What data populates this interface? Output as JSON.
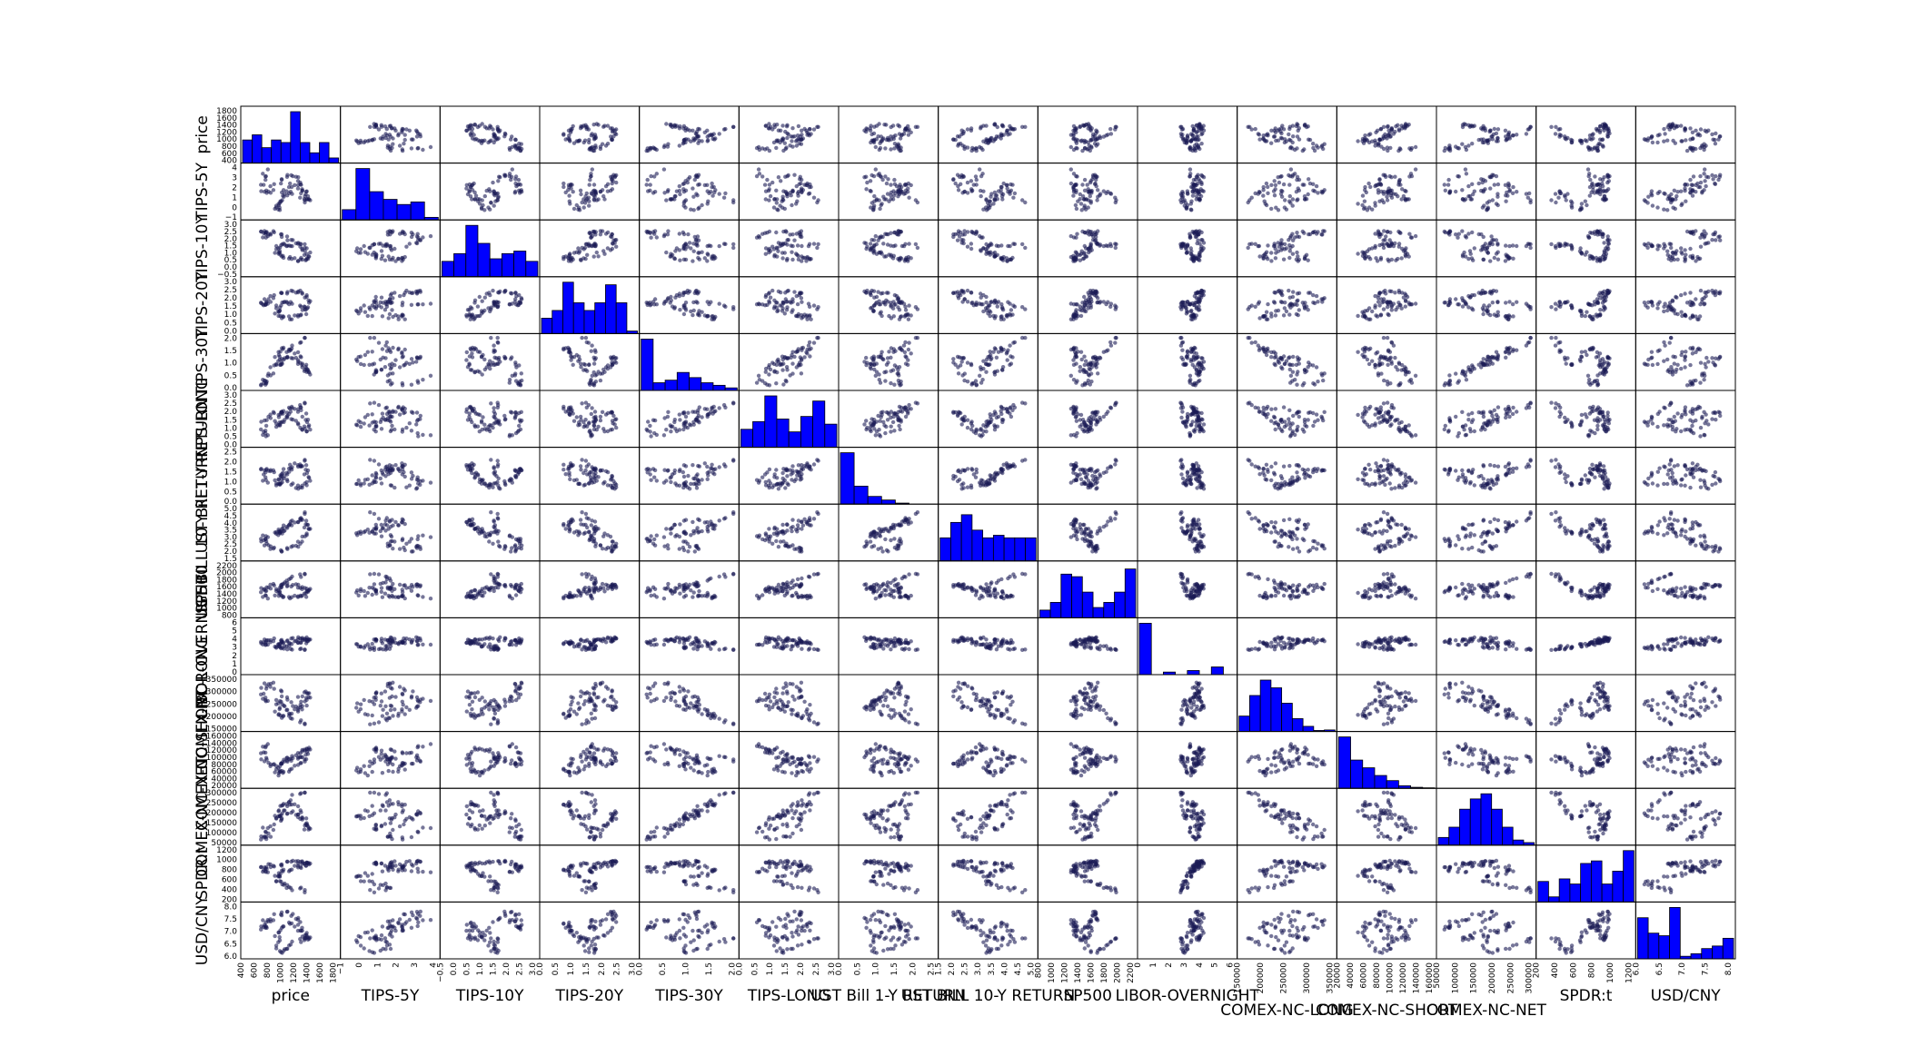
{
  "chart_data": {
    "type": "scatter_matrix",
    "variables": [
      "price",
      "TIPS-5Y",
      "TIPS-10Y",
      "TIPS-20Y",
      "TIPS-30Y",
      "TIPS-LONG",
      "UST Bill 1-Y RETURN",
      "UST BILL 10-Y RETURN",
      "SP500",
      "LIBOR-OVERNIGHT",
      "COMEX-NC-LONG",
      "COMEX-NC-SHORT",
      "COMEX-NC-NET",
      "SPDR:t",
      "USD/CNY"
    ],
    "diagonal": "histogram",
    "off_diagonal": "scatter",
    "ranges": {
      "price": [
        400,
        1900
      ],
      "TIPS-5Y": [
        -1.5,
        4.5
      ],
      "TIPS-10Y": [
        -0.8,
        3.0
      ],
      "TIPS-20Y": [
        -0.3,
        3.3
      ],
      "TIPS-30Y": [
        0.0,
        2.2
      ],
      "TIPS-LONG": [
        -0.2,
        3.0
      ],
      "UST Bill 1-Y RETURN": [
        0.0,
        2.6
      ],
      "UST BILL 10-Y RETURN": [
        1.4,
        5.3
      ],
      "SP500": [
        600,
        2250
      ],
      "LIBOR-OVERNIGHT": [
        0,
        6.5
      ],
      "COMEX-NC-LONG": [
        100000,
        360000
      ],
      "COMEX-NC-SHORT": [
        15000,
        160000
      ],
      "COMEX-NC-NET": [
        20000,
        310000
      ],
      "SPDR:t": [
        100,
        1350
      ],
      "USD/CNY": [
        6.0,
        8.3
      ]
    },
    "row_ticks": [
      [
        "400",
        "600",
        "800",
        "1000",
        "1200",
        "1400",
        "1600",
        "1800"
      ],
      [
        "−1",
        "0",
        "1",
        "2",
        "3",
        "4"
      ],
      [
        "−0.5",
        "0.0",
        "0.5",
        "1.0",
        "1.5",
        "2.0",
        "2.5",
        "3.0"
      ],
      [
        "0.0",
        "0.5",
        "1.0",
        "1.5",
        "2.0",
        "2.5",
        "3.0"
      ],
      [
        "0.0",
        "0.5",
        "1.0",
        "1.5",
        "2.0"
      ],
      [
        "0.0",
        "0.5",
        "1.0",
        "1.5",
        "2.0",
        "2.5",
        "3.0"
      ],
      [
        "0.0",
        "0.5",
        "1.0",
        "1.5",
        "2.0",
        "2.5"
      ],
      [
        "1.5",
        "2.0",
        "2.5",
        "3.0",
        "3.5",
        "4.0",
        "4.5",
        "5.0"
      ],
      [
        "800",
        "1000",
        "1200",
        "1400",
        "1600",
        "1800",
        "2000",
        "2200"
      ],
      [
        "0",
        "1",
        "2",
        "3",
        "4",
        "5",
        "6"
      ],
      [
        "150000",
        "200000",
        "250000",
        "300000",
        "350000"
      ],
      [
        "20000",
        "40000",
        "60000",
        "80000",
        "100000",
        "120000",
        "140000",
        "160000"
      ],
      [
        "50000",
        "100000",
        "150000",
        "200000",
        "250000",
        "300000"
      ],
      [
        "200",
        "400",
        "600",
        "800",
        "1000",
        "1200"
      ],
      [
        "6.0",
        "6.5",
        "7.0",
        "7.5",
        "8.0"
      ]
    ],
    "col_ticks": [
      [
        "400",
        "600",
        "800",
        "1000",
        "1200",
        "1400",
        "1600",
        "1800"
      ],
      [
        "−1",
        "0",
        "1",
        "2",
        "3",
        "4"
      ],
      [
        "−0.5",
        "0.0",
        "0.5",
        "1.0",
        "1.5",
        "2.0",
        "2.5",
        "3.0"
      ],
      [
        "0.0",
        "0.5",
        "1.0",
        "1.5",
        "2.0",
        "2.5",
        "3.0"
      ],
      [
        "0.0",
        "0.5",
        "1.0",
        "1.5",
        "2.0"
      ],
      [
        "0.0",
        "0.5",
        "1.0",
        "1.5",
        "2.0",
        "2.5",
        "3.0"
      ],
      [
        "0.0",
        "0.5",
        "1.0",
        "1.5",
        "2.0",
        "2.5"
      ],
      [
        "1.5",
        "2.0",
        "2.5",
        "3.0",
        "3.5",
        "4.0",
        "4.5",
        "5.0"
      ],
      [
        "800",
        "1000",
        "1200",
        "1400",
        "1600",
        "1800",
        "2000",
        "2200"
      ],
      [
        "0",
        "1",
        "2",
        "3",
        "4",
        "5",
        "6"
      ],
      [
        "150000",
        "200000",
        "250000",
        "300000",
        "350000"
      ],
      [
        "20000",
        "40000",
        "60000",
        "80000",
        "100000",
        "120000",
        "140000",
        "160000"
      ],
      [
        "50000",
        "100000",
        "150000",
        "200000",
        "250000",
        "300000"
      ],
      [
        "200",
        "400",
        "600",
        "800",
        "1000",
        "1200"
      ],
      [
        "6.0",
        "6.5",
        "7.0",
        "7.5",
        "8.0"
      ]
    ],
    "histograms": [
      [
        0.45,
        0.55,
        0.3,
        0.45,
        0.4,
        1.0,
        0.4,
        0.2,
        0.4,
        0.1
      ],
      [
        0.2,
        1.0,
        0.55,
        0.4,
        0.3,
        0.35,
        0.05
      ],
      [
        0.3,
        0.45,
        1.0,
        0.65,
        0.35,
        0.45,
        0.5,
        0.3
      ],
      [
        0.3,
        0.45,
        1.0,
        0.6,
        0.45,
        0.6,
        0.95,
        0.6,
        0.05
      ],
      [
        1.0,
        0.15,
        0.2,
        0.35,
        0.25,
        0.15,
        0.1,
        0.05
      ],
      [
        0.35,
        0.5,
        1.0,
        0.55,
        0.3,
        0.6,
        0.9,
        0.45
      ],
      [
        1.0,
        0.35,
        0.15,
        0.08,
        0.02,
        0.0,
        0.0
      ],
      [
        0.45,
        0.75,
        0.9,
        0.6,
        0.45,
        0.5,
        0.45,
        0.45,
        0.45
      ],
      [
        0.15,
        0.3,
        0.85,
        0.8,
        0.5,
        0.2,
        0.3,
        0.5,
        0.95
      ],
      [
        1.0,
        0.0,
        0.05,
        0.0,
        0.08,
        0.0,
        0.15,
        0.0
      ],
      [
        0.3,
        0.7,
        1.0,
        0.85,
        0.55,
        0.25,
        0.1,
        0.02,
        0.03
      ],
      [
        1.0,
        0.55,
        0.4,
        0.25,
        0.15,
        0.05,
        0.02,
        0.01
      ],
      [
        0.15,
        0.35,
        0.7,
        0.9,
        1.0,
        0.7,
        0.35,
        0.1,
        0.05
      ],
      [
        0.4,
        0.1,
        0.45,
        0.35,
        0.75,
        0.8,
        0.35,
        0.6,
        1.0
      ],
      [
        0.8,
        0.5,
        0.45,
        1.0,
        0.05,
        0.1,
        0.2,
        0.25,
        0.4
      ]
    ]
  }
}
